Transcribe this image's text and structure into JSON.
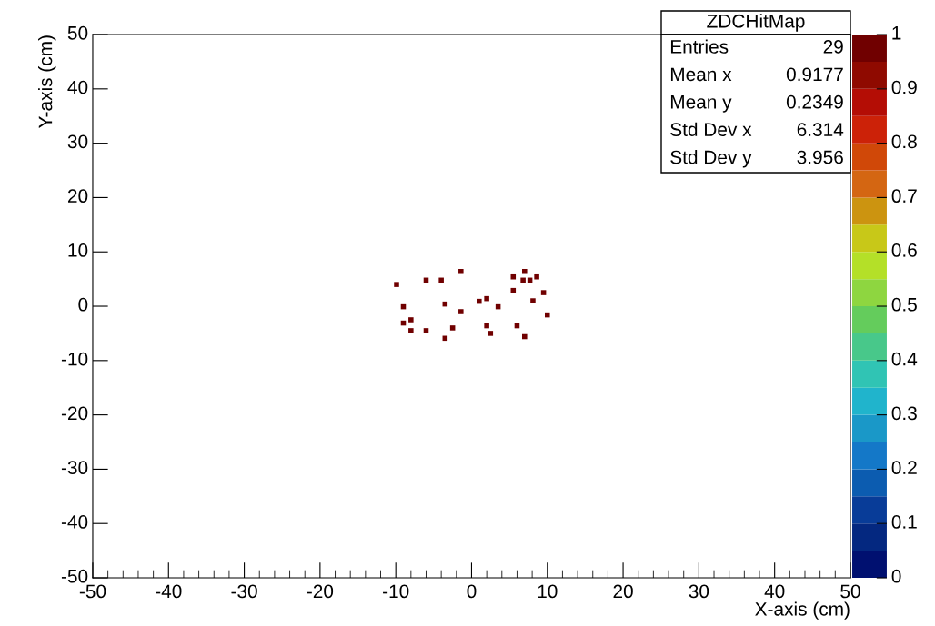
{
  "chart_data": {
    "type": "scatter",
    "title": "ZDCHitMap",
    "xlabel": "X-axis (cm)",
    "ylabel": "Y-axis (cm)",
    "x": [
      -9.9,
      -6.0,
      -4.0,
      -1.4,
      5.5,
      7.0,
      6.8,
      7.7,
      8.6,
      5.5,
      9.5,
      -9.0,
      -3.5,
      1.0,
      2.0,
      3.5,
      8.1,
      10.0,
      -1.4,
      -8.0,
      -9.0,
      -8.0,
      -6.0,
      -2.5,
      -3.5,
      2.0,
      2.5,
      6.0,
      7.0
    ],
    "values": [
      4.0,
      4.8,
      4.8,
      6.4,
      5.4,
      6.4,
      4.8,
      4.8,
      5.4,
      2.9,
      2.5,
      -0.1,
      0.4,
      0.9,
      1.4,
      -0.1,
      1.0,
      -1.6,
      -1.0,
      -2.5,
      -3.1,
      -4.5,
      -4.5,
      -4.0,
      -5.9,
      -3.6,
      -5.0,
      -3.6,
      -5.6
    ],
    "cvalues": [
      1,
      1,
      1,
      1,
      1,
      1,
      1,
      1,
      1,
      1,
      1,
      1,
      1,
      1,
      1,
      1,
      1,
      1,
      1,
      1,
      1,
      1,
      1,
      1,
      1,
      1,
      1,
      1,
      1
    ],
    "marker": "square",
    "xlim": [
      -50,
      50
    ],
    "ylim": [
      -50,
      50
    ],
    "xticks": [
      -50,
      -40,
      -30,
      -20,
      -10,
      0,
      10,
      20,
      30,
      40,
      50
    ],
    "yticks": [
      -50,
      -40,
      -30,
      -20,
      -10,
      0,
      10,
      20,
      30,
      40,
      50
    ],
    "clim": [
      0,
      1
    ],
    "cticks": [
      0,
      0.1,
      0.2,
      0.3,
      0.4,
      0.5,
      0.6,
      0.7,
      0.8,
      0.9,
      1
    ],
    "annotations": [
      "Entries",
      "29",
      "Mean x",
      "0.9177",
      "Mean y",
      "0.2349",
      "Std Dev x",
      "6.314",
      "Std Dev y",
      "3.956"
    ],
    "grid": false
  }
}
